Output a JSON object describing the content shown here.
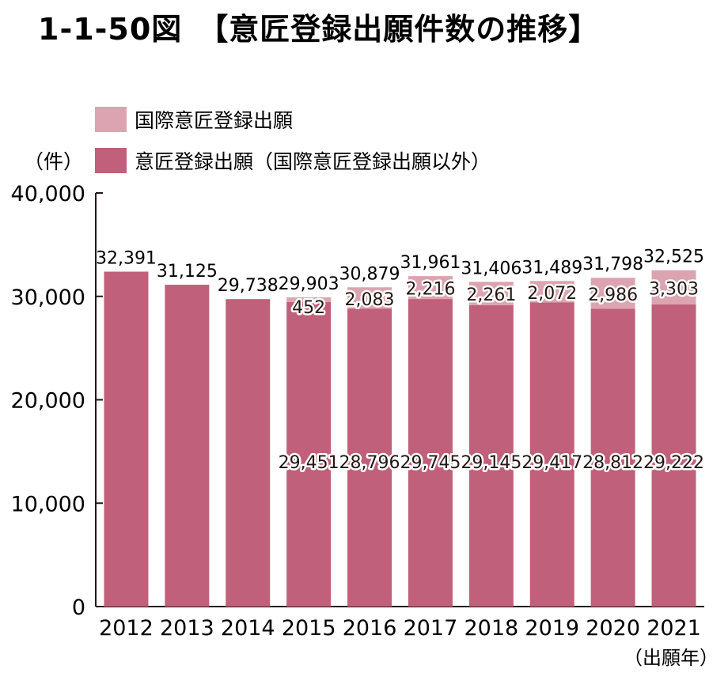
{
  "chart_data": {
    "type": "bar",
    "stacked": true,
    "title": "1-1-50図　【意匠登録出願件数の推移】",
    "ylabel": "（件）",
    "xlabel": "（出願年）",
    "ylim": [
      0,
      40000
    ],
    "yticks": [
      "0",
      "10,000",
      "20,000",
      "30,000",
      "40,000"
    ],
    "categories": [
      "2012",
      "2013",
      "2014",
      "2015",
      "2016",
      "2017",
      "2018",
      "2019",
      "2020",
      "2021"
    ],
    "series": [
      {
        "name": "意匠登録出願（国際意匠登録出願以外）",
        "color": "#c0607a",
        "values": [
          32391,
          31125,
          29738,
          29451,
          28796,
          29745,
          29145,
          29417,
          28812,
          29222
        ],
        "labels": [
          "",
          "",
          "",
          "29,451",
          "28,796",
          "29,745",
          "29,145",
          "29,417",
          "28,812",
          "29,222"
        ]
      },
      {
        "name": "国際意匠登録出願",
        "color": "#dca4b0",
        "values": [
          0,
          0,
          0,
          452,
          2083,
          2216,
          2261,
          2072,
          2986,
          3303
        ],
        "labels": [
          "",
          "",
          "",
          "452",
          "2,083",
          "2,216",
          "2,261",
          "2,072",
          "2,986",
          "3,303"
        ]
      }
    ],
    "totals": [
      "32,391",
      "31,125",
      "29,738",
      "29,903",
      "30,879",
      "31,961",
      "31,406",
      "31,489",
      "31,798",
      "32,525"
    ],
    "legend": [
      {
        "label": "国際意匠登録出願",
        "color": "#dca4b0"
      },
      {
        "label": "意匠登録出願（国際意匠登録出願以外）",
        "color": "#c0607a"
      }
    ],
    "legend_position": "top-left",
    "grid": false
  }
}
